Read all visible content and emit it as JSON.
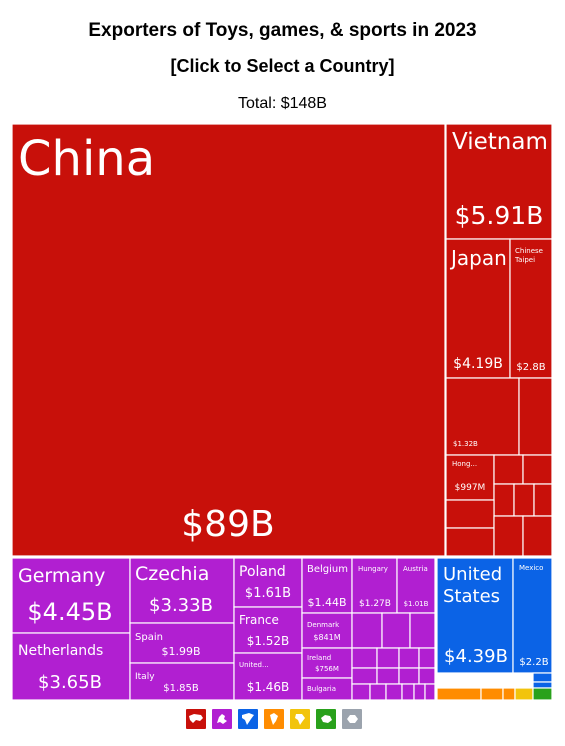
{
  "header": {
    "title": "Exporters of Toys, games, & sports in 2023",
    "subtitle": "[Click to Select a Country]",
    "total": "Total: $148B"
  },
  "legend": [
    {
      "icon": "asia-icon",
      "color": "#c8100a"
    },
    {
      "icon": "europe-icon",
      "color": "#b11fd1"
    },
    {
      "icon": "north-america-icon",
      "color": "#0b63e6"
    },
    {
      "icon": "south-america-icon",
      "color": "#ff8c00"
    },
    {
      "icon": "africa-icon",
      "color": "#f2c40c"
    },
    {
      "icon": "oceania-icon",
      "color": "#29a11b"
    },
    {
      "icon": "antarctica-icon",
      "color": "#9ba3ad"
    }
  ],
  "chart_data": {
    "type": "treemap",
    "title": "Exporters of Toys, games, & sports in 2023",
    "total": "$148B",
    "items": [
      {
        "name": "China",
        "value_label": "$89B",
        "value": 89,
        "region": "asia"
      },
      {
        "name": "Vietnam",
        "value_label": "$5.91B",
        "value": 5.91,
        "region": "asia"
      },
      {
        "name": "Japan",
        "value_label": "$4.19B",
        "value": 4.19,
        "region": "asia"
      },
      {
        "name": "Chinese Taipei",
        "value_label": "$2.8B",
        "value": 2.8,
        "region": "asia"
      },
      {
        "name": "",
        "value_label": "$1.32B",
        "value": 1.32,
        "region": "asia"
      },
      {
        "name": "Hong...",
        "value_label": "$997M",
        "value": 0.997,
        "region": "asia"
      },
      {
        "name": "Germany",
        "value_label": "$4.45B",
        "value": 4.45,
        "region": "europe"
      },
      {
        "name": "Netherlands",
        "value_label": "$3.65B",
        "value": 3.65,
        "region": "europe"
      },
      {
        "name": "Czechia",
        "value_label": "$3.33B",
        "value": 3.33,
        "region": "europe"
      },
      {
        "name": "Spain",
        "value_label": "$1.99B",
        "value": 1.99,
        "region": "europe"
      },
      {
        "name": "Italy",
        "value_label": "$1.85B",
        "value": 1.85,
        "region": "europe"
      },
      {
        "name": "Poland",
        "value_label": "$1.61B",
        "value": 1.61,
        "region": "europe"
      },
      {
        "name": "France",
        "value_label": "$1.52B",
        "value": 1.52,
        "region": "europe"
      },
      {
        "name": "United...",
        "value_label": "$1.46B",
        "value": 1.46,
        "region": "europe"
      },
      {
        "name": "Belgium",
        "value_label": "$1.44B",
        "value": 1.44,
        "region": "europe"
      },
      {
        "name": "Hungary",
        "value_label": "$1.27B",
        "value": 1.27,
        "region": "europe"
      },
      {
        "name": "Austria",
        "value_label": "$1.01B",
        "value": 1.01,
        "region": "europe"
      },
      {
        "name": "Denmark",
        "value_label": "$841M",
        "value": 0.841,
        "region": "europe"
      },
      {
        "name": "Ireland",
        "value_label": "$756M",
        "value": 0.756,
        "region": "europe"
      },
      {
        "name": "Bulgaria",
        "value_label": "",
        "value": null,
        "region": "europe"
      },
      {
        "name": "United States",
        "value_label": "$4.39B",
        "value": 4.39,
        "region": "north-america"
      },
      {
        "name": "Mexico",
        "value_label": "$2.2B",
        "value": 2.2,
        "region": "north-america"
      }
    ]
  }
}
